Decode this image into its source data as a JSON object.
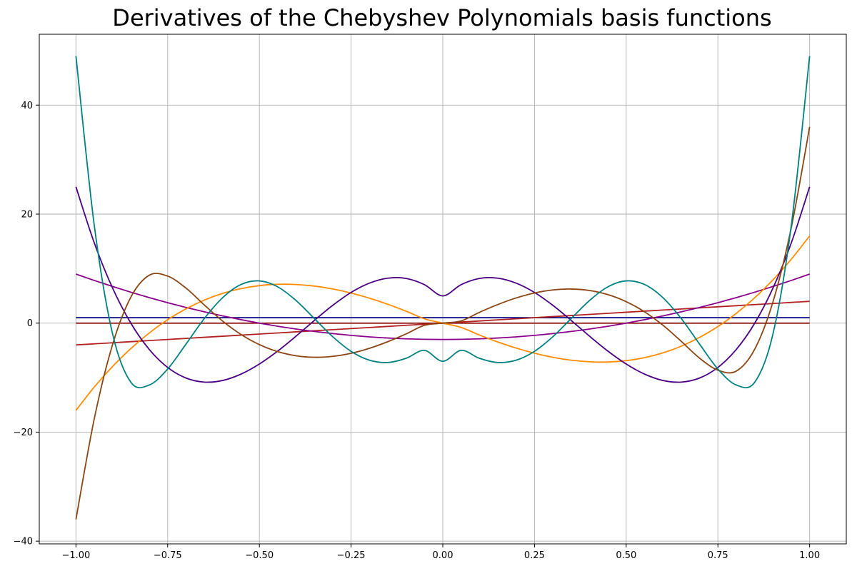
{
  "chart_data": {
    "type": "line",
    "title": "Derivatives of the Chebyshev Polynomials basis functions",
    "xlabel": "",
    "ylabel": "",
    "xlim": [
      -1.1,
      1.1
    ],
    "ylim": [
      -40.5,
      53
    ],
    "grid": true,
    "x_ticks": [
      -1.0,
      -0.75,
      -0.5,
      -0.25,
      0.0,
      0.25,
      0.5,
      0.75,
      1.0
    ],
    "x_tick_labels": [
      "−1.00",
      "−0.75",
      "−0.50",
      "−0.25",
      "0.00",
      "0.25",
      "0.50",
      "0.75",
      "1.00"
    ],
    "y_ticks": [
      -40,
      -20,
      0,
      20,
      40
    ],
    "y_tick_labels": [
      "−40",
      "−20",
      "0",
      "20",
      "40"
    ],
    "x": [
      -1.0,
      -0.95,
      -0.9,
      -0.85,
      -0.8,
      -0.75,
      -0.7,
      -0.65,
      -0.6,
      -0.55,
      -0.5,
      -0.45,
      -0.4,
      -0.35,
      -0.3,
      -0.25,
      -0.2,
      -0.15,
      -0.1,
      -0.05,
      0.0,
      0.05,
      0.1,
      0.15,
      0.2,
      0.25,
      0.3,
      0.35,
      0.4,
      0.45,
      0.5,
      0.55,
      0.6,
      0.65,
      0.7,
      0.75,
      0.8,
      0.85,
      0.9,
      0.95,
      1.0
    ],
    "series": [
      {
        "color": "#8B0000",
        "values": [
          0,
          0,
          0,
          0,
          0,
          0,
          0,
          0,
          0,
          0,
          0,
          0,
          0,
          0,
          0,
          0,
          0,
          0,
          0,
          0,
          0,
          0,
          0,
          0,
          0,
          0,
          0,
          0,
          0,
          0,
          0,
          0,
          0,
          0,
          0,
          0,
          0,
          0,
          0,
          0,
          0
        ]
      },
      {
        "color": "#000080",
        "values": [
          1,
          1,
          1,
          1,
          1,
          1,
          1,
          1,
          1,
          1,
          1,
          1,
          1,
          1,
          1,
          1,
          1,
          1,
          1,
          1,
          1,
          1,
          1,
          1,
          1,
          1,
          1,
          1,
          1,
          1,
          1,
          1,
          1,
          1,
          1,
          1,
          1,
          1,
          1,
          1,
          1
        ]
      },
      {
        "color": "#B22222",
        "values": [
          -4.0,
          -3.8,
          -3.6,
          -3.4,
          -3.2,
          -3.0,
          -2.8,
          -2.6,
          -2.4,
          -2.2,
          -2.0,
          -1.8,
          -1.6,
          -1.4,
          -1.2,
          -1.0,
          -0.8,
          -0.6,
          -0.4,
          -0.2,
          0.0,
          0.2,
          0.4,
          0.6,
          0.8,
          1.0,
          1.2,
          1.4,
          1.6,
          1.8,
          2.0,
          2.2,
          2.4,
          2.6,
          2.8,
          3.0,
          3.2,
          3.4,
          3.6,
          3.8,
          4.0
        ]
      },
      {
        "color": "#8B008B",
        "values": [
          9.0,
          7.83,
          6.72,
          5.67,
          4.68,
          3.75,
          2.88,
          2.07,
          1.32,
          0.63,
          0.0,
          -0.57,
          -1.08,
          -1.53,
          -1.92,
          -2.25,
          -2.52,
          -2.73,
          -2.88,
          -2.97,
          -3.0,
          -2.97,
          -2.88,
          -2.73,
          -2.52,
          -2.25,
          -1.92,
          -1.53,
          -1.08,
          -0.57,
          0.0,
          0.63,
          1.32,
          2.07,
          2.88,
          3.75,
          4.68,
          5.67,
          6.72,
          7.83,
          9.0
        ]
      },
      {
        "color": "#FF8C00",
        "values": [
          -16.0,
          -11.72,
          -7.94,
          -4.64,
          -1.79,
          0.63,
          2.62,
          4.23,
          5.46,
          6.33,
          6.88,
          7.13,
          7.09,
          6.8,
          6.27,
          5.52,
          4.58,
          3.46,
          2.19,
          0.79,
          0.0,
          -0.79,
          -2.19,
          -3.46,
          -4.58,
          -5.52,
          -6.27,
          -6.8,
          -7.09,
          -7.13,
          -6.88,
          -6.33,
          -5.46,
          -4.23,
          -2.62,
          -0.63,
          1.79,
          4.64,
          7.94,
          11.72,
          16.0
        ]
      },
      {
        "color": "#4B0082",
        "values": [
          25.0,
          14.71,
          6.41,
          -0.05,
          -4.84,
          -8.13,
          -10.07,
          -10.82,
          -10.52,
          -9.35,
          -7.5,
          -5.13,
          -2.39,
          0.5,
          3.27,
          5.63,
          7.34,
          8.25,
          8.2,
          7.06,
          5.0,
          7.06,
          8.2,
          8.25,
          7.34,
          5.63,
          3.27,
          0.5,
          -2.39,
          -5.13,
          -7.5,
          -9.35,
          -10.52,
          -10.82,
          -10.07,
          -8.13,
          -4.84,
          -0.05,
          6.41,
          14.71,
          25.0
        ]
      },
      {
        "color": "#8B4513",
        "values": [
          -36.0,
          -17.51,
          -3.88,
          4.82,
          8.8,
          8.63,
          6.42,
          3.33,
          0.37,
          -2.08,
          -3.94,
          -5.23,
          -5.99,
          -6.26,
          -6.09,
          -5.53,
          -4.62,
          -3.41,
          -1.98,
          -0.4,
          0.0,
          0.4,
          1.98,
          3.41,
          4.62,
          5.53,
          6.09,
          6.26,
          5.99,
          5.23,
          3.94,
          2.08,
          -0.37,
          -3.33,
          -6.42,
          -8.63,
          -8.8,
          -4.82,
          3.88,
          17.51,
          36.0
        ]
      },
      {
        "color": "#008080",
        "values": [
          49.0,
          17.89,
          -2.03,
          -10.88,
          -11.35,
          -8.42,
          -3.84,
          0.85,
          4.68,
          7.09,
          7.75,
          6.66,
          4.15,
          0.84,
          -2.49,
          -5.17,
          -6.8,
          -7.22,
          -6.45,
          -5.0,
          -7.0,
          -5.0,
          -6.45,
          -7.22,
          -6.8,
          -5.17,
          -2.49,
          0.84,
          4.15,
          6.66,
          7.75,
          7.09,
          4.68,
          0.85,
          -3.84,
          -8.42,
          -11.35,
          -10.88,
          -2.03,
          17.89,
          49.0
        ]
      }
    ]
  }
}
